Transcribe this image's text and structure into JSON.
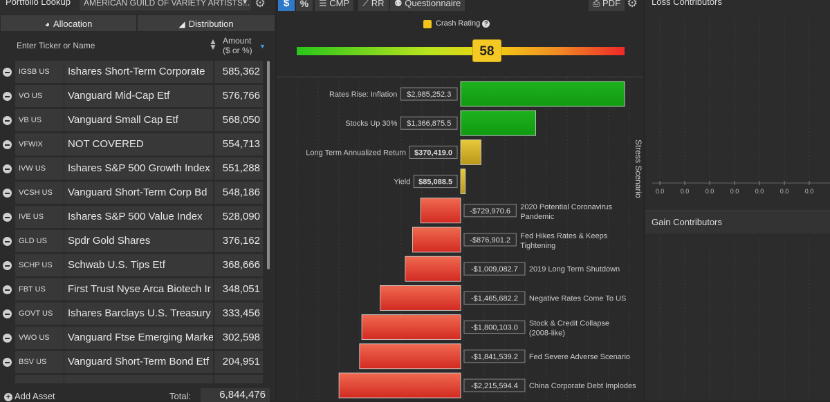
{
  "header": {
    "portfolio_label": "Portfolio Lookup",
    "portfolio_name": "AMERICAN GUILD OF VARIETY ARTISTS...",
    "gear_icon": "gear-icon"
  },
  "tabs": [
    {
      "label": "Allocation",
      "icon": "pie-chart-icon"
    },
    {
      "label": "Distribution",
      "icon": "area-chart-icon"
    }
  ],
  "table": {
    "ticker_placeholder": "Enter Ticker or Name",
    "amount_header_1": "Amount",
    "amount_header_2": "($ or %)",
    "rows": [
      {
        "ticker": "IGSB US",
        "name": "Ishares Short-Term Corporate",
        "amount": "585,362"
      },
      {
        "ticker": "VO US",
        "name": "Vanguard Mid-Cap Etf",
        "amount": "576,766"
      },
      {
        "ticker": "VB US",
        "name": "Vanguard Small Cap Etf",
        "amount": "568,050"
      },
      {
        "ticker": "VFWIX",
        "name": "NOT COVERED",
        "amount": "554,713"
      },
      {
        "ticker": "IVW US",
        "name": "Ishares S&P 500 Growth Index",
        "amount": "551,288"
      },
      {
        "ticker": "VCSH US",
        "name": "Vanguard Short-Term Corp Bd",
        "amount": "548,186"
      },
      {
        "ticker": "IVE US",
        "name": "Ishares S&P 500 Value Index",
        "amount": "528,090"
      },
      {
        "ticker": "GLD US",
        "name": "Spdr Gold Shares",
        "amount": "376,162"
      },
      {
        "ticker": "SCHP US",
        "name": "Schwab U.S. Tips Etf",
        "amount": "368,666"
      },
      {
        "ticker": "FBT US",
        "name": "First Trust Nyse Arca Biotech Ir",
        "amount": "348,051"
      },
      {
        "ticker": "GOVT US",
        "name": "Ishares Barclays U.S. Treasury",
        "amount": "333,456"
      },
      {
        "ticker": "VWO US",
        "name": "Vanguard Ftse Emerging Marke",
        "amount": "302,598"
      },
      {
        "ticker": "BSV US",
        "name": "Vanguard Short-Term Bond Etf",
        "amount": "204,951"
      }
    ]
  },
  "footer": {
    "add_asset_label": "Add Asset",
    "total_label": "Total:",
    "total_value": "6,844,476"
  },
  "toolbar": {
    "dollar_label": "$",
    "percent_label": "%",
    "cmp_label": "CMP",
    "rr_label": "RR",
    "questionnaire_label": "Questionnaire",
    "pdf_label": "PDF"
  },
  "crash_rating": {
    "label": "Crash Rating",
    "value": 58,
    "scale_max": 100,
    "swatch_color": "#f0c419"
  },
  "stress": {
    "axis_title": "Stress Scenario",
    "positive_color": "#109a10",
    "neutral_color": "#d4b428",
    "negative_color": "#e3463a"
  },
  "chart_data": {
    "type": "bar",
    "orientation": "horizontal",
    "title": "",
    "ylabel": "Stress Scenario",
    "categories": [
      "Rates Rise: Inflation",
      "Stocks Up 30%",
      "Long Term Annualized Return",
      "Yield",
      "2020 Potential Coronavirus Pandemic",
      "Fed Hikes Rates & Keeps Tightening",
      "2019 Long Term Shutdown",
      "Negative Rates Come To US",
      "Stock & Credit Collapse (2008-like)",
      "Fed Severe Adverse Scenario",
      "China Corporate Debt Implodes"
    ],
    "values": [
      2985252.3,
      1366875.5,
      370419.0,
      85088.5,
      -729970.6,
      -876901.2,
      -1009082.7,
      -1465682.2,
      -1800103.0,
      -1841539.2,
      -2215594.4
    ],
    "value_labels": [
      "$2,985,252.3",
      "$1,366,875.5",
      "$370,419.0",
      "$85,088.5",
      "-$729,970.6",
      "-$876,901.2",
      "-$1,009,082.7",
      "-$1,465,682.2",
      "-$1,800,103.0",
      "-$1,841,539.2",
      "-$2,215,594.4"
    ],
    "bold_labels": [
      false,
      false,
      true,
      true,
      false,
      false,
      false,
      false,
      false,
      false,
      false
    ]
  },
  "loss_contributors": {
    "title": "Loss Contributors",
    "axis_ticks": [
      "0.0",
      "0.0",
      "0.0",
      "0.0",
      "0.0",
      "0.0",
      "0.0"
    ]
  },
  "gain_contributors": {
    "title": "Gain Contributors"
  }
}
